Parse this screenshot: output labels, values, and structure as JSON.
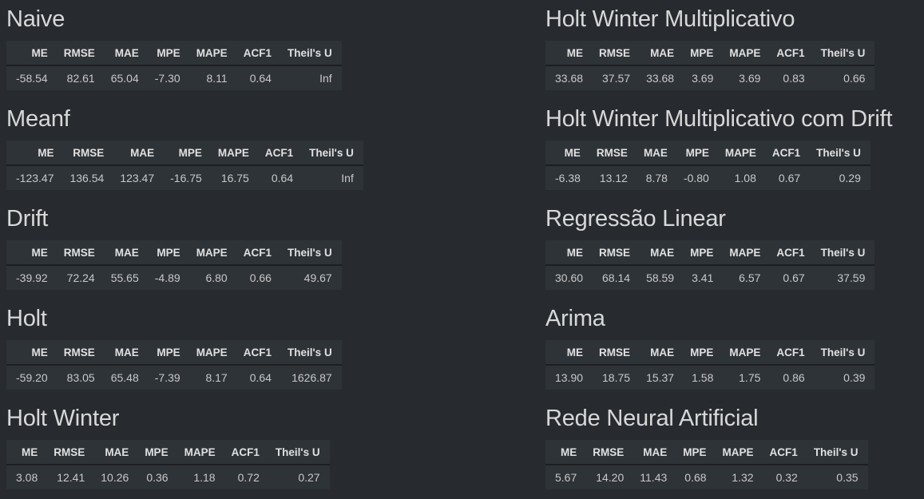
{
  "columns": [
    "ME",
    "RMSE",
    "MAE",
    "MPE",
    "MAPE",
    "ACF1",
    "Theil's U"
  ],
  "left": [
    {
      "title": "Naive",
      "values": [
        "-58.54",
        "82.61",
        "65.04",
        "-7.30",
        "8.11",
        "0.64",
        "Inf"
      ]
    },
    {
      "title": "Meanf",
      "values": [
        "-123.47",
        "136.54",
        "123.47",
        "-16.75",
        "16.75",
        "0.64",
        "Inf"
      ]
    },
    {
      "title": "Drift",
      "values": [
        "-39.92",
        "72.24",
        "55.65",
        "-4.89",
        "6.80",
        "0.66",
        "49.67"
      ]
    },
    {
      "title": "Holt",
      "values": [
        "-59.20",
        "83.05",
        "65.48",
        "-7.39",
        "8.17",
        "0.64",
        "1626.87"
      ]
    },
    {
      "title": "Holt Winter",
      "values": [
        "3.08",
        "12.41",
        "10.26",
        "0.36",
        "1.18",
        "0.72",
        "0.27"
      ]
    }
  ],
  "right": [
    {
      "title": "Holt Winter Multiplicativo",
      "values": [
        "33.68",
        "37.57",
        "33.68",
        "3.69",
        "3.69",
        "0.83",
        "0.66"
      ]
    },
    {
      "title": "Holt Winter Multiplicativo com Drift",
      "values": [
        "-6.38",
        "13.12",
        "8.78",
        "-0.80",
        "1.08",
        "0.67",
        "0.29"
      ]
    },
    {
      "title": "Regressão Linear",
      "values": [
        "30.60",
        "68.14",
        "58.59",
        "3.41",
        "6.57",
        "0.67",
        "37.59"
      ]
    },
    {
      "title": "Arima",
      "values": [
        "13.90",
        "18.75",
        "15.37",
        "1.58",
        "1.75",
        "0.86",
        "0.39"
      ]
    },
    {
      "title": "Rede Neural Artificial",
      "values": [
        "5.67",
        "14.20",
        "11.43",
        "0.68",
        "1.32",
        "0.32",
        "0.35"
      ]
    }
  ]
}
